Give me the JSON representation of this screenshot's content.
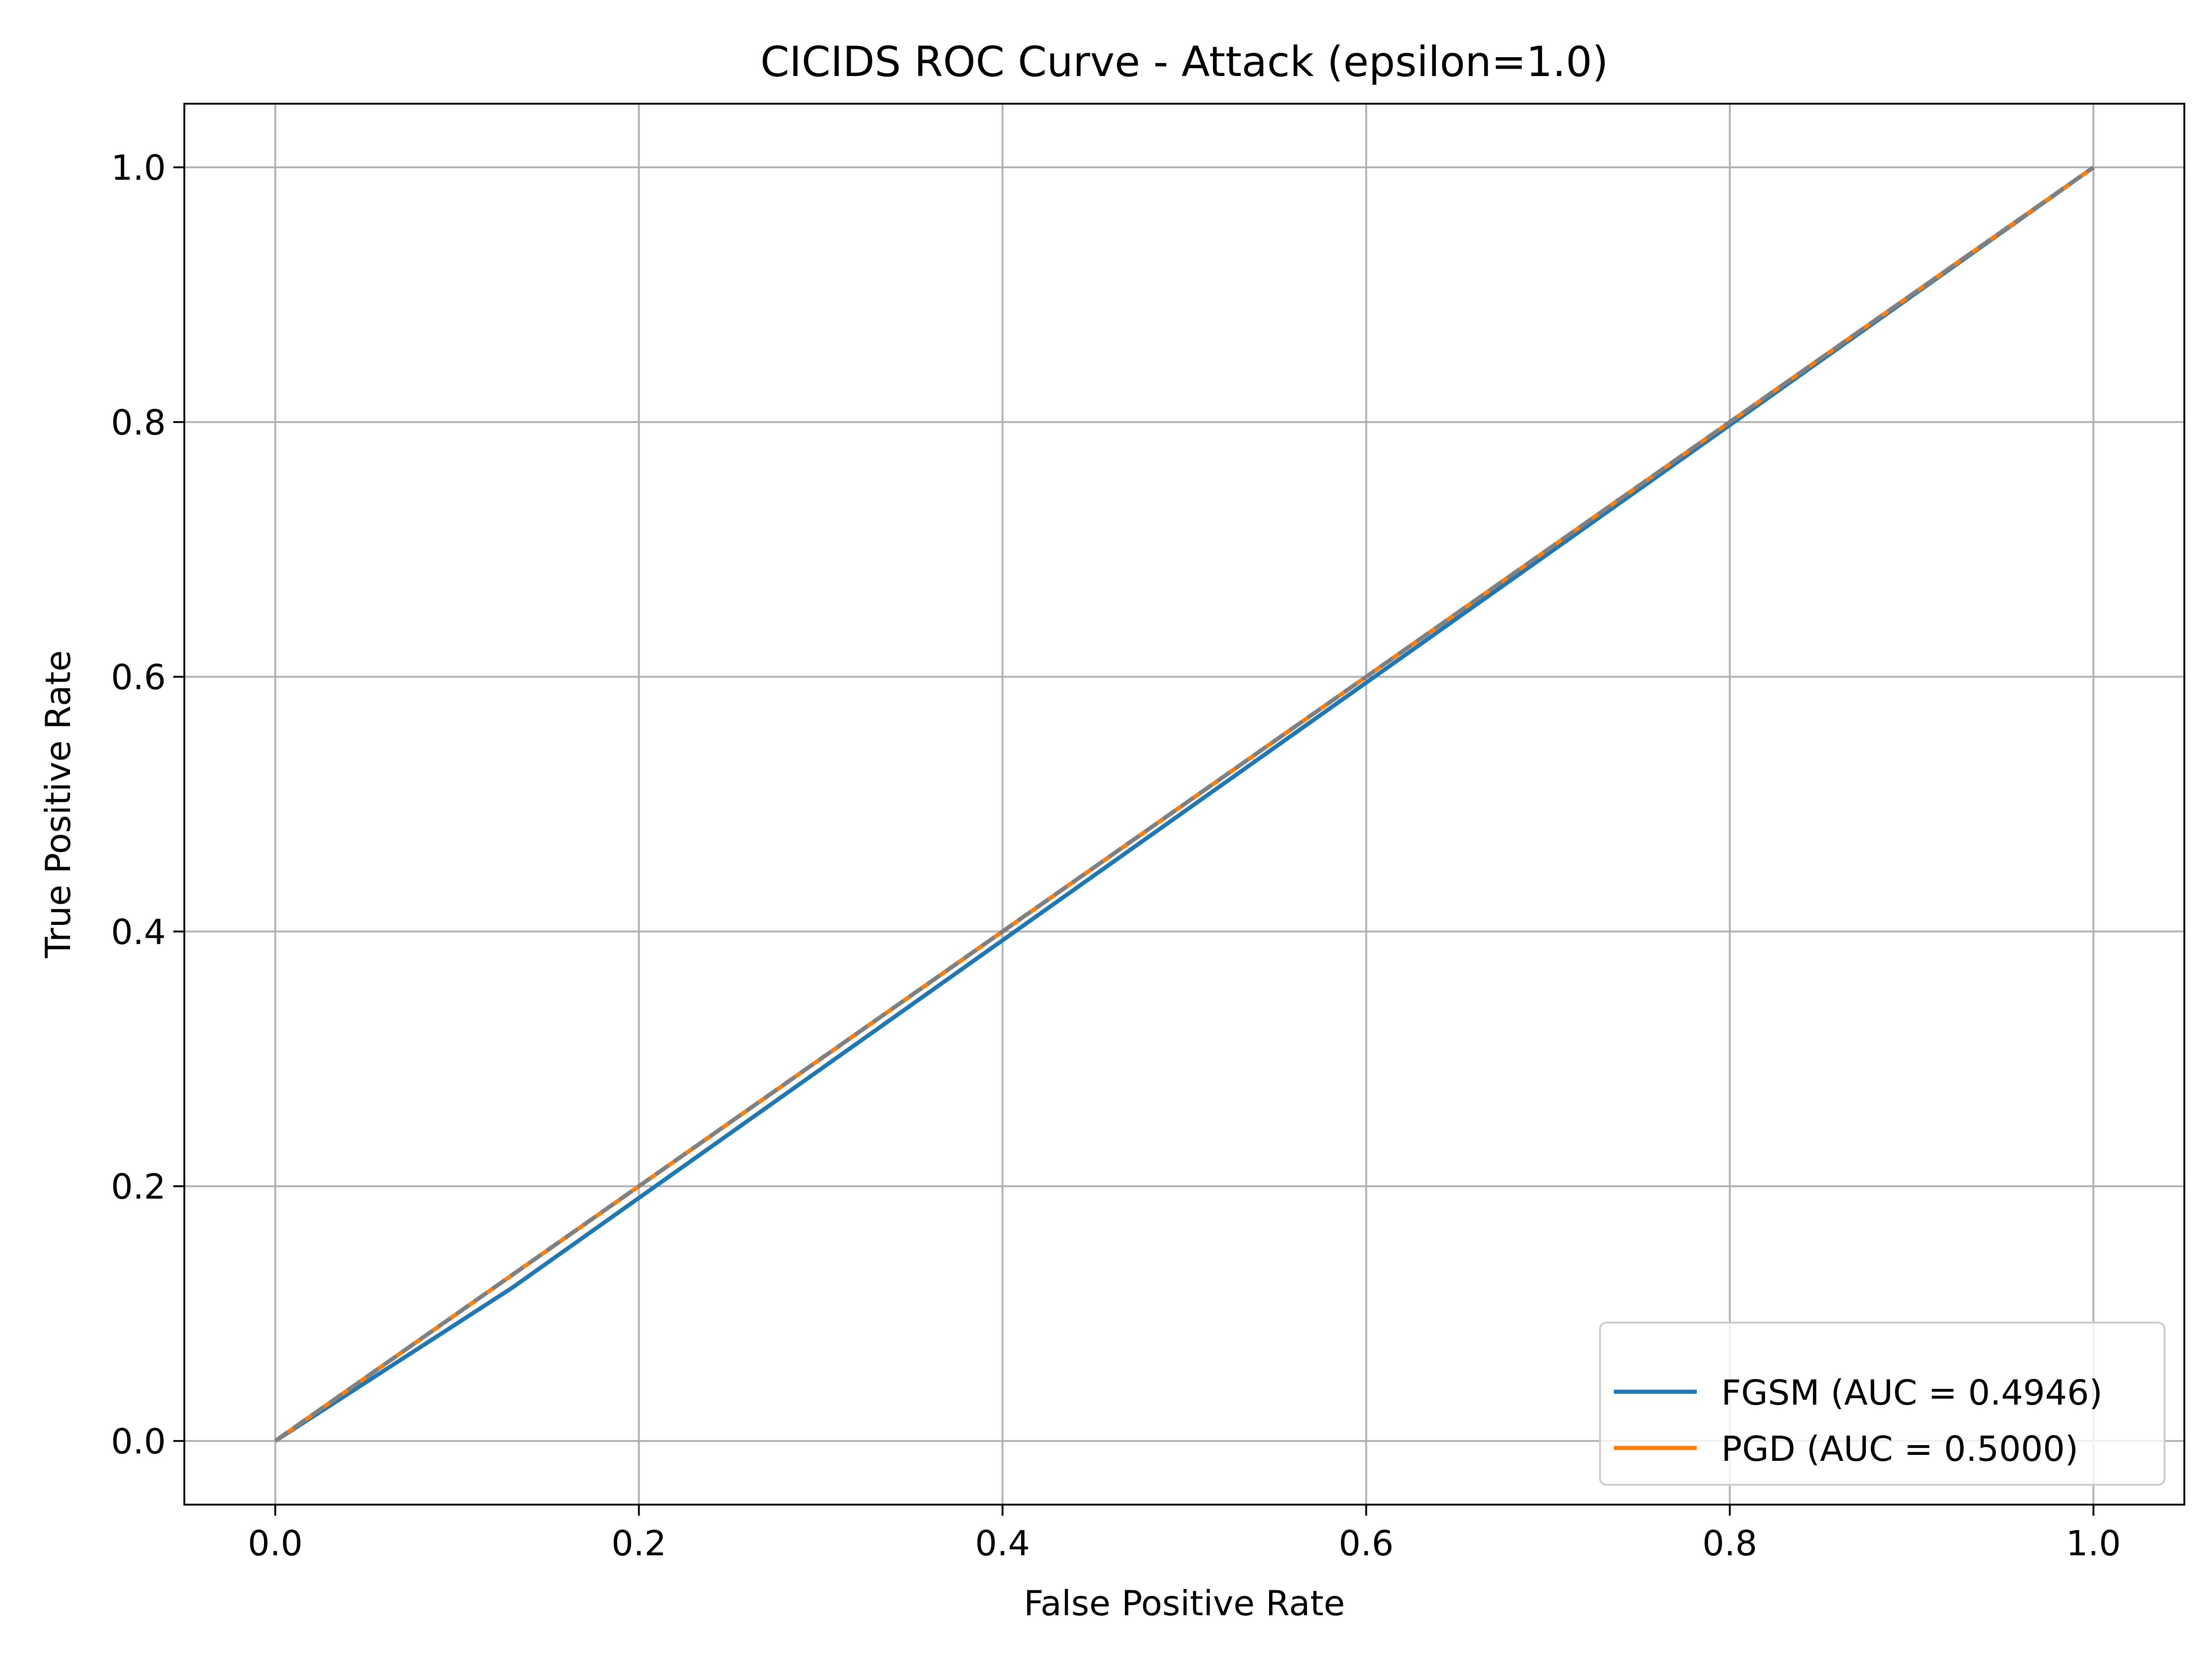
{
  "chart_data": {
    "type": "line",
    "title": "CICIDS ROC Curve - Attack (epsilon=1.0)",
    "xlabel": "False Positive Rate",
    "ylabel": "True Positive Rate",
    "xlim": [
      -0.05,
      1.05
    ],
    "ylim": [
      -0.05,
      1.05
    ],
    "xticks": [
      0.0,
      0.2,
      0.4,
      0.6,
      0.8,
      1.0
    ],
    "yticks": [
      0.0,
      0.2,
      0.4,
      0.6,
      0.8,
      1.0
    ],
    "xtick_labels": [
      "0.0",
      "0.2",
      "0.4",
      "0.6",
      "0.8",
      "1.0"
    ],
    "ytick_labels": [
      "0.0",
      "0.2",
      "0.4",
      "0.6",
      "0.8",
      "1.0"
    ],
    "grid": true,
    "legend_position": "lower right",
    "series": [
      {
        "name": "FGSM (AUC = 0.4946)",
        "color": "#1f77b4",
        "style": "solid",
        "x": [
          0.0,
          0.13,
          1.0
        ],
        "y": [
          0.0,
          0.12,
          1.0
        ]
      },
      {
        "name": "PGD (AUC = 0.5000)",
        "color": "#ff7f0e",
        "style": "solid",
        "x": [
          0.0,
          1.0
        ],
        "y": [
          0.0,
          1.0
        ]
      }
    ],
    "reference_line": {
      "color": "#808080",
      "style": "dashed",
      "x": [
        0.0,
        1.0
      ],
      "y": [
        0.0,
        1.0
      ]
    }
  }
}
